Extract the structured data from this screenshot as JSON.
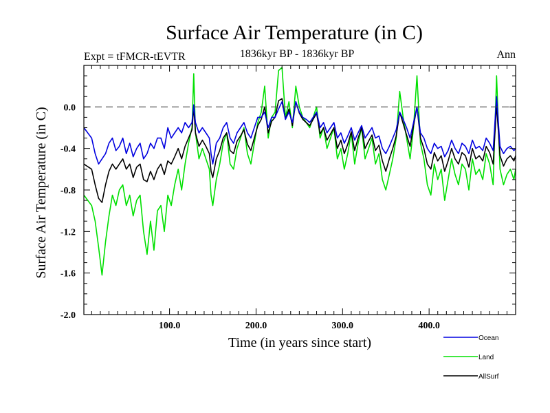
{
  "chart_data": {
    "type": "line",
    "title": "Surface Air Temperature (in C)",
    "subtitle_left": "Expt = tFMCR-tEVTR",
    "subtitle_center": "1836kyr BP - 1836kyr BP",
    "subtitle_right": "Ann",
    "xlabel": "Time (in years since start)",
    "ylabel": "Surface Air Temperature (in C)",
    "xlim": [
      1,
      500
    ],
    "ylim": [
      -2.0,
      0.4
    ],
    "xticks": [
      100,
      200,
      300,
      400
    ],
    "xtick_labels": [
      "100.0",
      "200.0",
      "300.0",
      "400.0"
    ],
    "yticks": [
      -2.0,
      -1.6,
      -1.2,
      -0.8,
      -0.4,
      0.0
    ],
    "ytick_labels": [
      "-2.0",
      "-1.6",
      "-1.2",
      "-0.8",
      "-0.4",
      "0.0"
    ],
    "reference_line": 0.0,
    "legend_position": "bottom-right",
    "series": [
      {
        "name": "Land",
        "color": "#00e000",
        "x": [
          1,
          10,
          14,
          18,
          22,
          26,
          30,
          34,
          38,
          42,
          46,
          50,
          54,
          58,
          62,
          66,
          70,
          74,
          78,
          82,
          86,
          90,
          94,
          98,
          102,
          106,
          110,
          114,
          118,
          122,
          126,
          128,
          130,
          134,
          138,
          142,
          146,
          148,
          150,
          154,
          158,
          162,
          166,
          170,
          174,
          178,
          182,
          186,
          190,
          194,
          198,
          202,
          206,
          210,
          214,
          218,
          222,
          226,
          230,
          234,
          238,
          242,
          246,
          250,
          254,
          258,
          262,
          266,
          270,
          274,
          278,
          282,
          286,
          290,
          294,
          298,
          302,
          306,
          310,
          314,
          318,
          322,
          326,
          330,
          334,
          338,
          342,
          346,
          350,
          354,
          358,
          362,
          366,
          370,
          374,
          378,
          382,
          386,
          390,
          394,
          398,
          402,
          406,
          410,
          414,
          418,
          422,
          426,
          430,
          434,
          438,
          442,
          446,
          450,
          454,
          458,
          462,
          466,
          470,
          474,
          478,
          482,
          486,
          490,
          494,
          498,
          500
        ],
        "values": [
          -0.85,
          -0.95,
          -1.1,
          -1.35,
          -1.62,
          -1.3,
          -1.05,
          -0.85,
          -0.95,
          -0.8,
          -0.75,
          -0.95,
          -0.85,
          -1.05,
          -0.9,
          -0.85,
          -1.2,
          -1.42,
          -1.1,
          -1.38,
          -1.0,
          -0.95,
          -1.2,
          -0.85,
          -0.95,
          -0.75,
          -0.6,
          -0.8,
          -0.55,
          -0.35,
          -0.2,
          0.32,
          -0.25,
          -0.5,
          -0.4,
          -0.5,
          -0.6,
          -0.85,
          -0.95,
          -0.7,
          -0.55,
          -0.35,
          -0.25,
          -0.55,
          -0.6,
          -0.4,
          -0.3,
          -0.2,
          -0.45,
          -0.55,
          -0.35,
          -0.15,
          -0.05,
          0.2,
          -0.3,
          -0.1,
          -0.05,
          0.35,
          0.38,
          -0.1,
          0.05,
          -0.2,
          0.2,
          0.0,
          -0.1,
          -0.15,
          -0.2,
          -0.1,
          0.0,
          -0.3,
          -0.2,
          -0.4,
          -0.3,
          -0.2,
          -0.5,
          -0.4,
          -0.6,
          -0.45,
          -0.25,
          -0.55,
          -0.35,
          -0.2,
          -0.5,
          -0.4,
          -0.3,
          -0.55,
          -0.45,
          -0.7,
          -0.8,
          -0.65,
          -0.5,
          -0.3,
          0.15,
          -0.1,
          -0.3,
          -0.5,
          -0.2,
          0.3,
          -0.35,
          -0.5,
          -0.75,
          -0.85,
          -0.55,
          -0.7,
          -0.6,
          -0.9,
          -0.7,
          -0.5,
          -0.65,
          -0.75,
          -0.55,
          -0.6,
          -0.8,
          -0.5,
          -0.65,
          -0.6,
          -0.7,
          -0.45,
          -0.55,
          -0.75,
          0.3,
          -0.6,
          -0.75,
          -0.65,
          -0.6,
          -0.7,
          -0.6
        ]
      },
      {
        "name": "AllSurf",
        "color": "#000000",
        "x": [
          1,
          10,
          14,
          18,
          22,
          26,
          30,
          34,
          38,
          42,
          46,
          50,
          54,
          58,
          62,
          66,
          70,
          74,
          78,
          82,
          86,
          90,
          94,
          98,
          102,
          106,
          110,
          114,
          118,
          122,
          126,
          128,
          130,
          134,
          138,
          142,
          146,
          148,
          150,
          154,
          158,
          162,
          166,
          170,
          174,
          178,
          182,
          186,
          190,
          194,
          198,
          202,
          206,
          210,
          214,
          218,
          222,
          226,
          230,
          234,
          238,
          242,
          246,
          250,
          254,
          258,
          262,
          266,
          270,
          274,
          278,
          282,
          286,
          290,
          294,
          298,
          302,
          306,
          310,
          314,
          318,
          322,
          326,
          330,
          334,
          338,
          342,
          346,
          350,
          354,
          358,
          362,
          366,
          370,
          374,
          378,
          382,
          386,
          390,
          394,
          398,
          402,
          406,
          410,
          414,
          418,
          422,
          426,
          430,
          434,
          438,
          442,
          446,
          450,
          454,
          458,
          462,
          466,
          470,
          474,
          478,
          482,
          486,
          490,
          494,
          498,
          500
        ],
        "values": [
          -0.55,
          -0.6,
          -0.75,
          -0.88,
          -0.92,
          -0.75,
          -0.62,
          -0.55,
          -0.6,
          -0.55,
          -0.5,
          -0.6,
          -0.55,
          -0.68,
          -0.58,
          -0.55,
          -0.7,
          -0.72,
          -0.62,
          -0.7,
          -0.6,
          -0.55,
          -0.65,
          -0.52,
          -0.55,
          -0.48,
          -0.4,
          -0.5,
          -0.38,
          -0.3,
          -0.22,
          0.0,
          -0.25,
          -0.38,
          -0.32,
          -0.38,
          -0.45,
          -0.62,
          -0.68,
          -0.5,
          -0.42,
          -0.3,
          -0.25,
          -0.42,
          -0.45,
          -0.33,
          -0.28,
          -0.22,
          -0.36,
          -0.42,
          -0.3,
          -0.18,
          -0.12,
          0.0,
          -0.25,
          -0.14,
          -0.1,
          0.06,
          0.08,
          -0.12,
          -0.02,
          -0.18,
          0.05,
          -0.06,
          -0.12,
          -0.15,
          -0.18,
          -0.12,
          -0.06,
          -0.26,
          -0.2,
          -0.32,
          -0.26,
          -0.2,
          -0.4,
          -0.32,
          -0.45,
          -0.36,
          -0.24,
          -0.42,
          -0.3,
          -0.2,
          -0.4,
          -0.33,
          -0.27,
          -0.42,
          -0.37,
          -0.52,
          -0.62,
          -0.5,
          -0.4,
          -0.28,
          -0.05,
          -0.16,
          -0.27,
          -0.38,
          -0.18,
          0.0,
          -0.3,
          -0.4,
          -0.55,
          -0.6,
          -0.44,
          -0.52,
          -0.47,
          -0.62,
          -0.52,
          -0.4,
          -0.5,
          -0.55,
          -0.44,
          -0.47,
          -0.58,
          -0.4,
          -0.5,
          -0.47,
          -0.52,
          -0.38,
          -0.44,
          -0.55,
          0.02,
          -0.47,
          -0.57,
          -0.5,
          -0.47,
          -0.52,
          -0.47
        ]
      },
      {
        "name": "Ocean",
        "color": "#0000e0",
        "x": [
          1,
          10,
          14,
          18,
          22,
          26,
          30,
          34,
          38,
          42,
          46,
          50,
          54,
          58,
          62,
          66,
          70,
          74,
          78,
          82,
          86,
          90,
          94,
          98,
          102,
          106,
          110,
          114,
          118,
          122,
          126,
          128,
          130,
          134,
          138,
          142,
          146,
          148,
          150,
          154,
          158,
          162,
          166,
          170,
          174,
          178,
          182,
          186,
          190,
          194,
          198,
          202,
          206,
          210,
          214,
          218,
          222,
          226,
          230,
          234,
          238,
          242,
          246,
          250,
          254,
          258,
          262,
          266,
          270,
          274,
          278,
          282,
          286,
          290,
          294,
          298,
          302,
          306,
          310,
          314,
          318,
          322,
          326,
          330,
          334,
          338,
          342,
          346,
          350,
          354,
          358,
          362,
          366,
          370,
          374,
          378,
          382,
          386,
          390,
          394,
          398,
          402,
          406,
          410,
          414,
          418,
          422,
          426,
          430,
          434,
          438,
          442,
          446,
          450,
          454,
          458,
          462,
          466,
          470,
          474,
          478,
          482,
          486,
          490,
          494,
          498,
          500
        ],
        "values": [
          -0.2,
          -0.3,
          -0.45,
          -0.55,
          -0.5,
          -0.45,
          -0.35,
          -0.3,
          -0.42,
          -0.38,
          -0.3,
          -0.45,
          -0.35,
          -0.48,
          -0.4,
          -0.35,
          -0.5,
          -0.45,
          -0.35,
          -0.4,
          -0.3,
          -0.3,
          -0.4,
          -0.2,
          -0.3,
          -0.25,
          -0.2,
          -0.25,
          -0.15,
          -0.2,
          -0.15,
          0.02,
          -0.15,
          -0.25,
          -0.2,
          -0.25,
          -0.3,
          -0.45,
          -0.55,
          -0.35,
          -0.3,
          -0.2,
          -0.15,
          -0.3,
          -0.35,
          -0.25,
          -0.2,
          -0.15,
          -0.25,
          -0.3,
          -0.2,
          -0.1,
          -0.1,
          -0.05,
          -0.2,
          -0.1,
          -0.1,
          -0.02,
          0.05,
          -0.12,
          -0.05,
          -0.15,
          0.05,
          -0.05,
          -0.1,
          -0.12,
          -0.15,
          -0.1,
          -0.05,
          -0.2,
          -0.15,
          -0.25,
          -0.2,
          -0.15,
          -0.3,
          -0.25,
          -0.35,
          -0.28,
          -0.2,
          -0.32,
          -0.25,
          -0.18,
          -0.3,
          -0.25,
          -0.2,
          -0.3,
          -0.28,
          -0.4,
          -0.45,
          -0.38,
          -0.3,
          -0.22,
          -0.05,
          -0.12,
          -0.2,
          -0.3,
          -0.15,
          0.0,
          -0.25,
          -0.3,
          -0.4,
          -0.45,
          -0.35,
          -0.4,
          -0.38,
          -0.48,
          -0.42,
          -0.32,
          -0.4,
          -0.45,
          -0.35,
          -0.38,
          -0.45,
          -0.32,
          -0.4,
          -0.38,
          -0.42,
          -0.3,
          -0.35,
          -0.42,
          0.1,
          -0.38,
          -0.45,
          -0.4,
          -0.38,
          -0.42,
          -0.4
        ]
      }
    ]
  }
}
